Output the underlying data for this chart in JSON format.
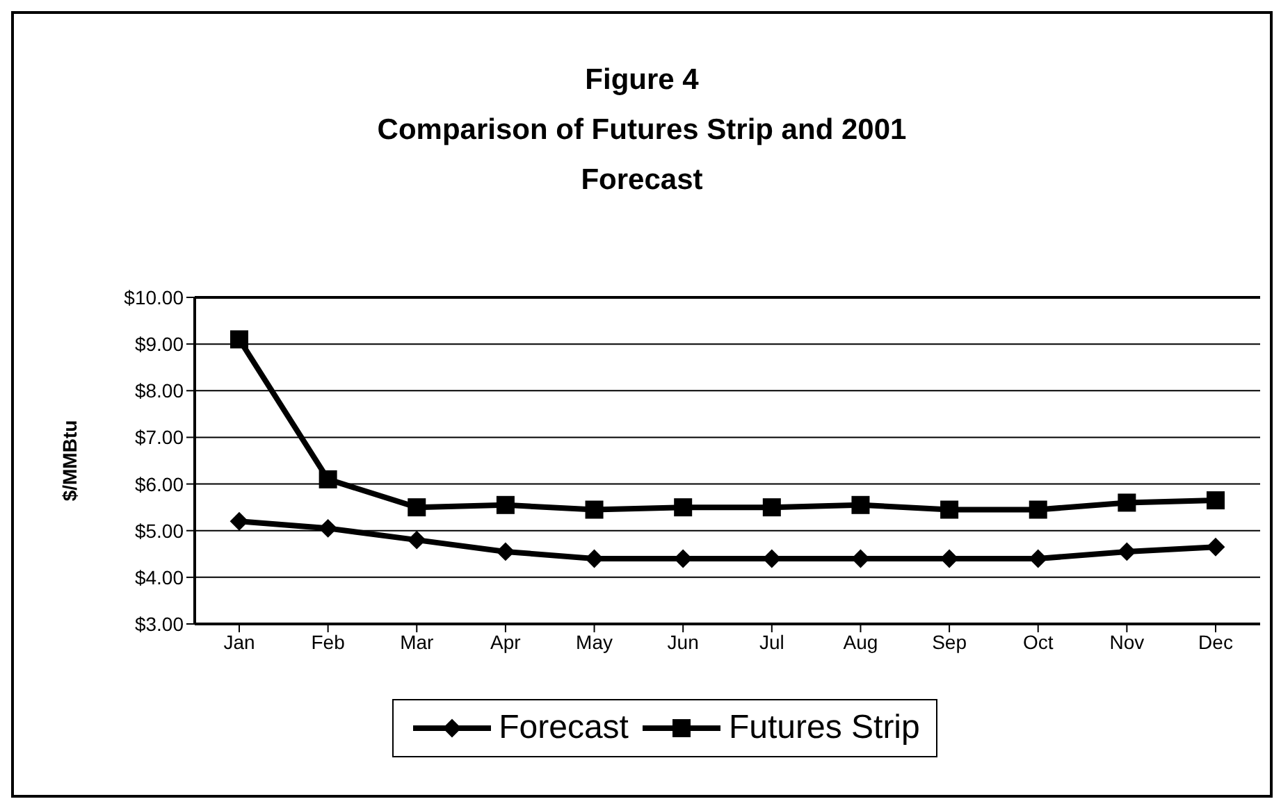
{
  "chart_data": {
    "type": "line",
    "title": "Figure 4\nComparison of Futures Strip and 2001\nForecast",
    "ylabel": "$/MMBtu",
    "categories": [
      "Jan",
      "Feb",
      "Mar",
      "Apr",
      "May",
      "Jun",
      "Jul",
      "Aug",
      "Sep",
      "Oct",
      "Nov",
      "Dec"
    ],
    "series": [
      {
        "name": "Forecast",
        "color": "#000000",
        "marker": "diamond",
        "values": [
          5.2,
          5.05,
          4.8,
          4.55,
          4.4,
          4.4,
          4.4,
          4.4,
          4.4,
          4.4,
          4.55,
          4.65
        ]
      },
      {
        "name": "Futures Strip",
        "color": "#000000",
        "marker": "square",
        "values": [
          9.1,
          6.1,
          5.5,
          5.55,
          5.45,
          5.5,
          5.5,
          5.55,
          5.45,
          5.45,
          5.6,
          5.65
        ]
      }
    ],
    "ylim": [
      3,
      10
    ],
    "yticks": [
      {
        "value": 3,
        "label": "$3.00"
      },
      {
        "value": 4,
        "label": "$4.00"
      },
      {
        "value": 5,
        "label": "$5.00"
      },
      {
        "value": 6,
        "label": "$6.00"
      },
      {
        "value": 7,
        "label": "$7.00"
      },
      {
        "value": 8,
        "label": "$8.00"
      },
      {
        "value": 9,
        "label": "$9.00"
      },
      {
        "value": 10,
        "label": "$10.00"
      }
    ],
    "grid": "y",
    "legend": "bottom",
    "line_style": "solid"
  }
}
